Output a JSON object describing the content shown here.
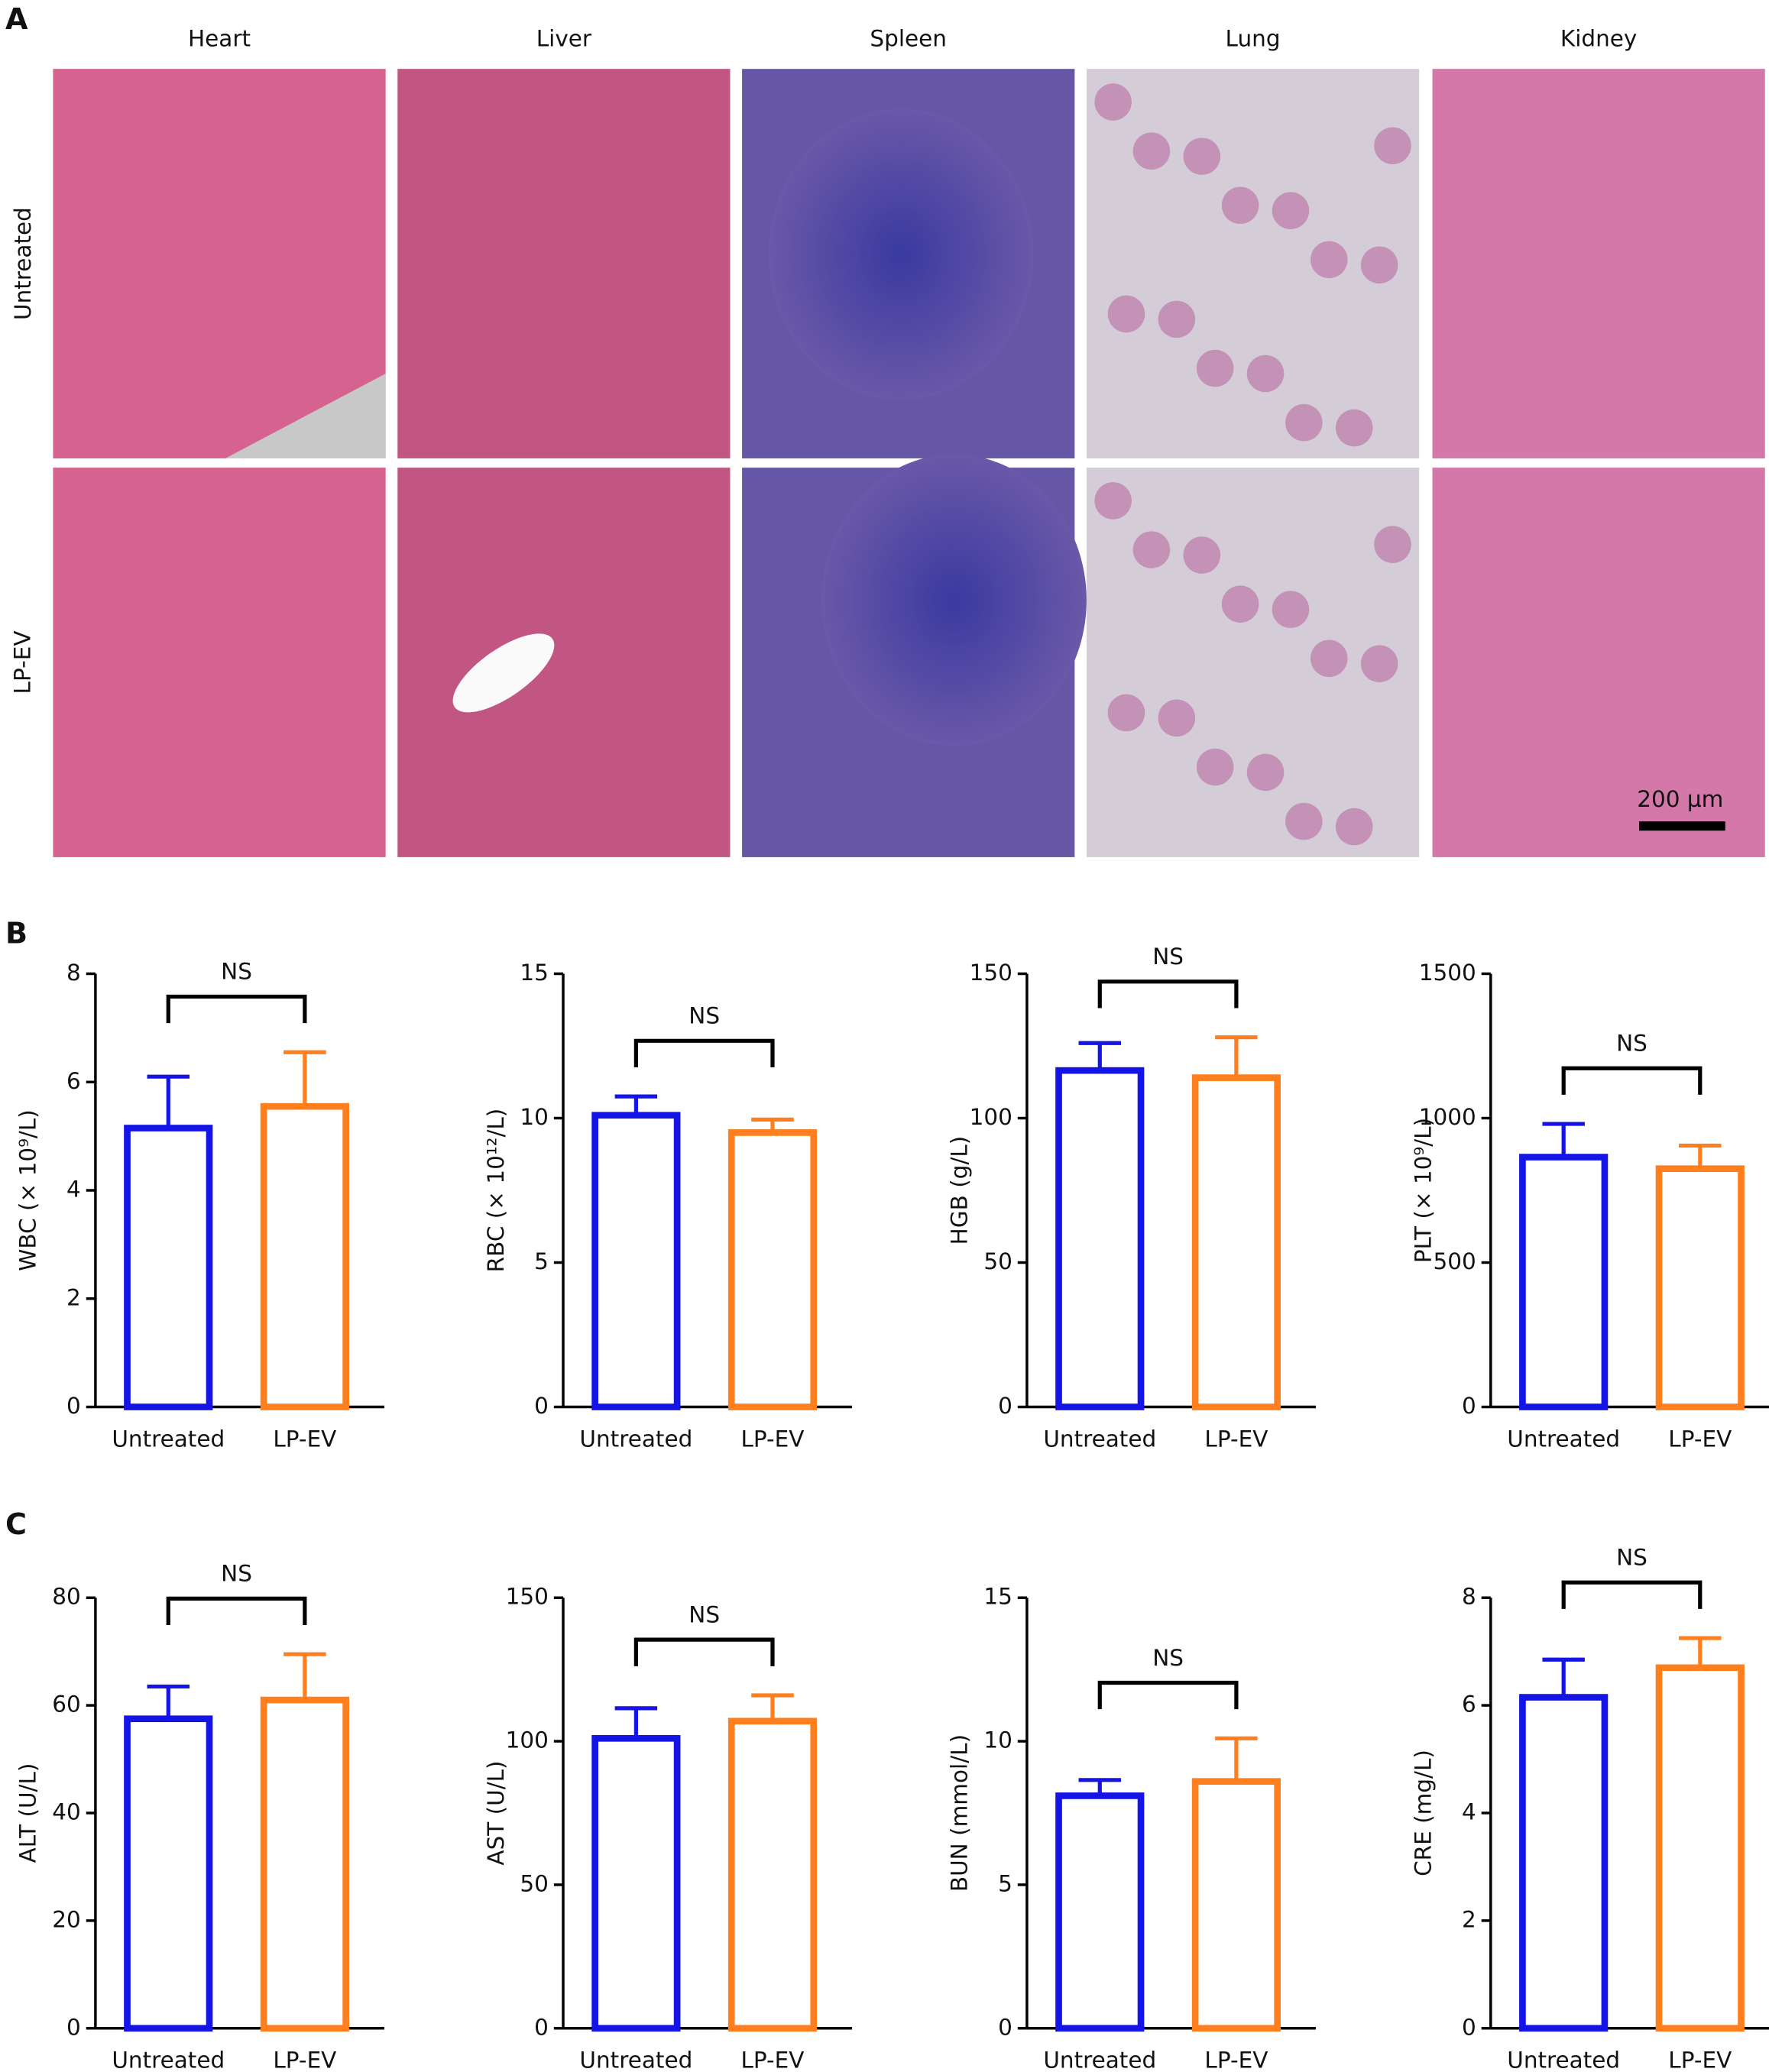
{
  "panel_labels": [
    "A",
    "B",
    "C"
  ],
  "histology": {
    "columns": [
      "Heart",
      "Liver",
      "Spleen",
      "Lung",
      "Kidney"
    ],
    "rows": [
      "Untreated",
      "LP-EV"
    ],
    "scale_bar": "200 µm"
  },
  "chart_data": [
    {
      "type": "bar",
      "y_label": "WBC (× 10⁹/L)",
      "categories": [
        "Untreated",
        "LP-EV"
      ],
      "values": [
        5.15,
        5.55
      ],
      "errors": [
        0.95,
        1.0
      ],
      "colors": [
        "#1414e6",
        "#ff7f1e"
      ],
      "ylim": [
        0,
        8
      ],
      "yticks": [
        0,
        2,
        4,
        6,
        8
      ],
      "annotation": "NS"
    },
    {
      "type": "bar",
      "y_label": "RBC (× 10¹²/L)",
      "categories": [
        "Untreated",
        "LP-EV"
      ],
      "values": [
        10.1,
        9.5
      ],
      "errors": [
        0.65,
        0.45
      ],
      "colors": [
        "#1414e6",
        "#ff7f1e"
      ],
      "ylim": [
        0,
        15
      ],
      "yticks": [
        0,
        5,
        10,
        15
      ],
      "annotation": "NS"
    },
    {
      "type": "bar",
      "y_label": "HGB (g/L)",
      "categories": [
        "Untreated",
        "LP-EV"
      ],
      "values": [
        116.5,
        114
      ],
      "errors": [
        9.5,
        14
      ],
      "colors": [
        "#1414e6",
        "#ff7f1e"
      ],
      "ylim": [
        0,
        150
      ],
      "yticks": [
        0,
        50,
        100,
        150
      ],
      "annotation": "NS"
    },
    {
      "type": "bar",
      "y_label": "PLT (× 10⁹/L)",
      "categories": [
        "Untreated",
        "LP-EV"
      ],
      "values": [
        865,
        825
      ],
      "errors": [
        115,
        80
      ],
      "colors": [
        "#1414e6",
        "#ff7f1e"
      ],
      "ylim": [
        0,
        1500
      ],
      "yticks": [
        0,
        500,
        1000,
        1500
      ],
      "annotation": "NS"
    },
    {
      "type": "bar",
      "y_label": "ALT (U/L)",
      "categories": [
        "Untreated",
        "LP-EV"
      ],
      "values": [
        57.5,
        61
      ],
      "errors": [
        6,
        8.5
      ],
      "colors": [
        "#1414e6",
        "#ff7f1e"
      ],
      "ylim": [
        0,
        80
      ],
      "yticks": [
        0,
        20,
        40,
        60,
        80
      ],
      "annotation": "NS"
    },
    {
      "type": "bar",
      "y_label": "AST (U/L)",
      "categories": [
        "Untreated",
        "LP-EV"
      ],
      "values": [
        101,
        107
      ],
      "errors": [
        10.5,
        9
      ],
      "colors": [
        "#1414e6",
        "#ff7f1e"
      ],
      "ylim": [
        0,
        150
      ],
      "yticks": [
        0,
        50,
        100,
        150
      ],
      "annotation": "NS"
    },
    {
      "type": "bar",
      "y_label": "BUN (mmol/L)",
      "categories": [
        "Untreated",
        "LP-EV"
      ],
      "values": [
        8.1,
        8.6
      ],
      "errors": [
        0.55,
        1.5
      ],
      "colors": [
        "#1414e6",
        "#ff7f1e"
      ],
      "ylim": [
        0,
        15
      ],
      "yticks": [
        0,
        5,
        10,
        15
      ],
      "annotation": "NS"
    },
    {
      "type": "bar",
      "y_label": "CRE (mg/L)",
      "categories": [
        "Untreated",
        "LP-EV"
      ],
      "values": [
        6.15,
        6.7
      ],
      "errors": [
        0.7,
        0.55
      ],
      "colors": [
        "#1414e6",
        "#ff7f1e"
      ],
      "ylim": [
        0,
        8
      ],
      "yticks": [
        0,
        2,
        4,
        6,
        8
      ],
      "annotation": "NS"
    }
  ]
}
